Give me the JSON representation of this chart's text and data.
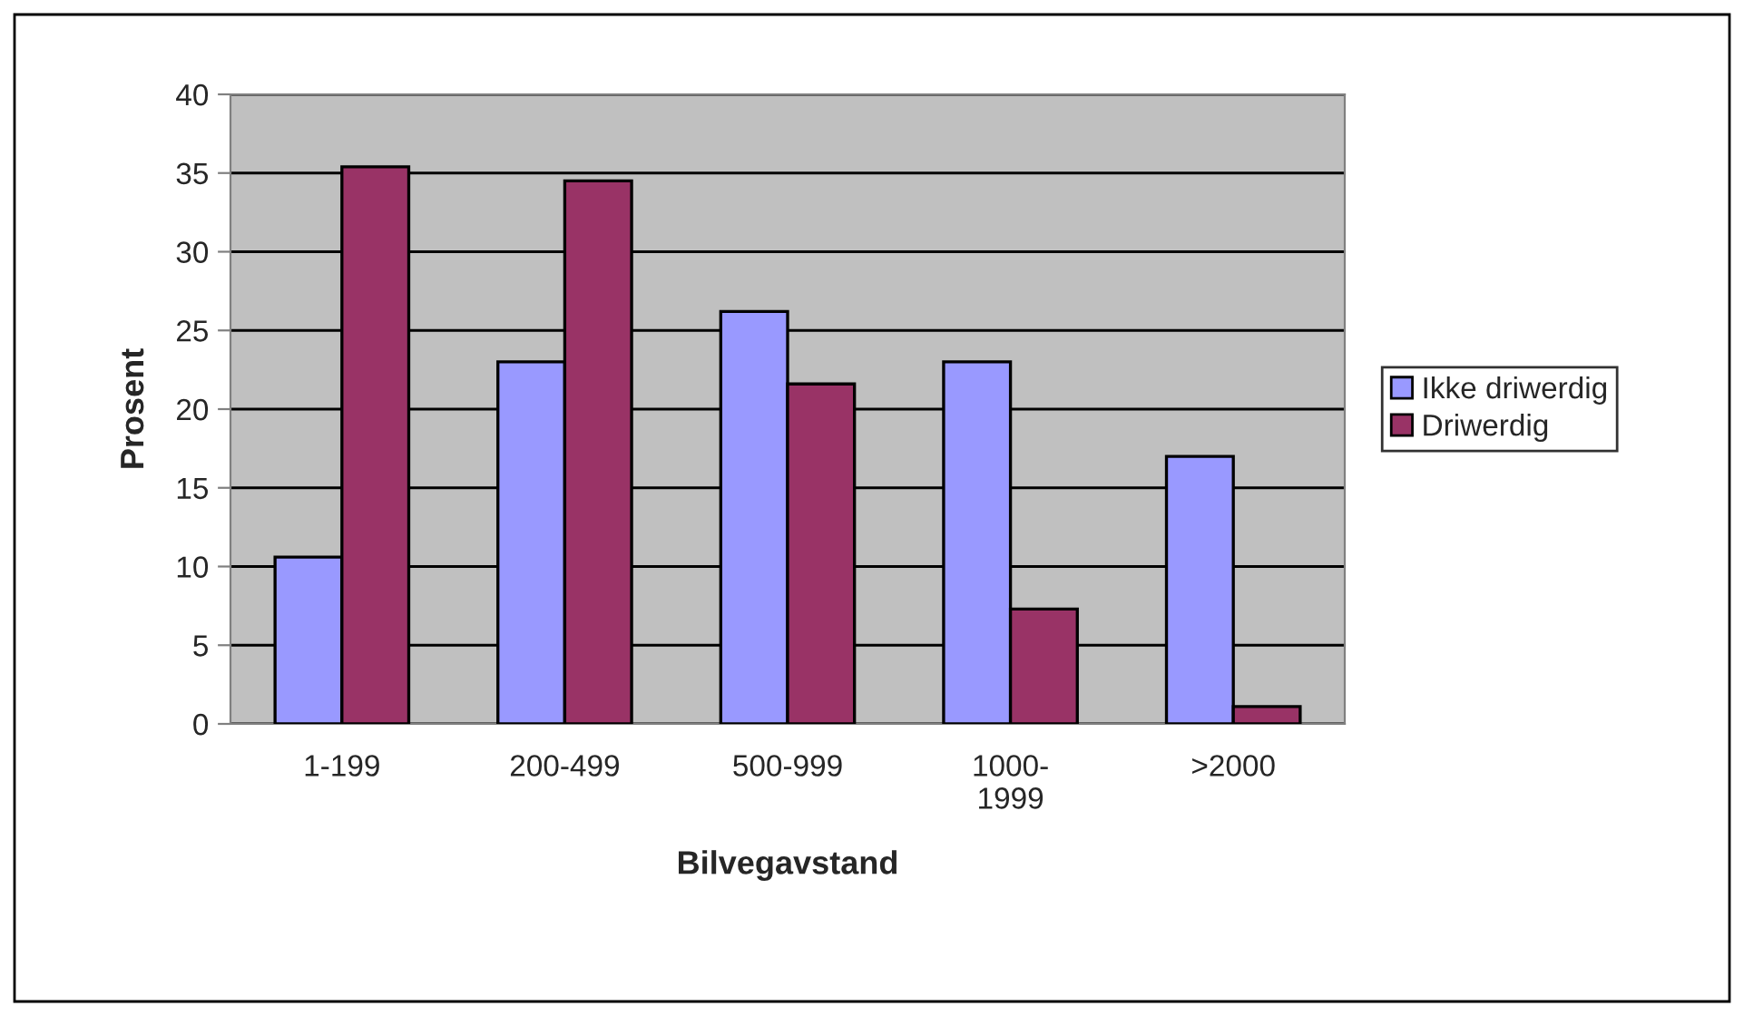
{
  "chart_data": {
    "type": "bar",
    "xlabel": "Bilvegavstand",
    "ylabel": "Prosent",
    "categories": [
      "1-199",
      "200-499",
      "500-999",
      "1000-\n1999",
      ">2000"
    ],
    "series": [
      {
        "name": "Ikke driwerdig",
        "color": "#9999ff",
        "values": [
          10.6,
          23.0,
          26.2,
          23.0,
          17.0
        ]
      },
      {
        "name": "Driwerdig",
        "color": "#993366",
        "values": [
          35.4,
          34.5,
          21.6,
          7.3,
          1.1
        ]
      }
    ],
    "ylim": [
      0,
      40
    ],
    "yticks": [
      0,
      5,
      10,
      15,
      20,
      25,
      30,
      35,
      40
    ],
    "grid": "y",
    "legend": "right"
  }
}
